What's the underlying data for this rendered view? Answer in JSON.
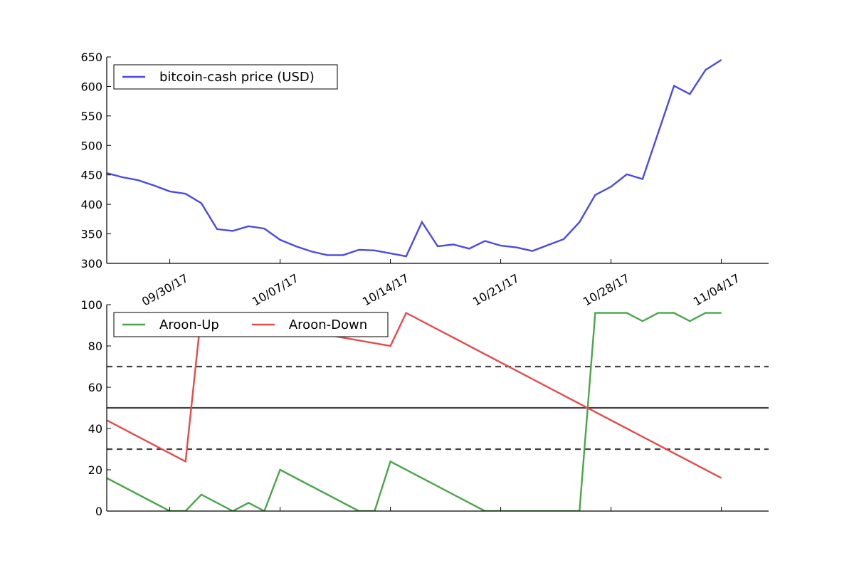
{
  "chart_data": [
    {
      "type": "line",
      "title": "",
      "xlabel": "",
      "ylabel": "",
      "ylim": [
        300,
        650
      ],
      "xlim": [
        "2017-09-26",
        "2017-11-07"
      ],
      "yticks": [
        300,
        350,
        400,
        450,
        500,
        550,
        600,
        650
      ],
      "xticks": [
        {
          "date": "2017-09-30",
          "label": "09/30/17"
        },
        {
          "date": "2017-10-07",
          "label": "10/07/17"
        },
        {
          "date": "2017-10-14",
          "label": "10/14/17"
        },
        {
          "date": "2017-10-21",
          "label": "10/21/17"
        },
        {
          "date": "2017-10-28",
          "label": "10/28/17"
        },
        {
          "date": "2017-11-04",
          "label": "11/04/17"
        }
      ],
      "grid": false,
      "legend_position": "top-left",
      "series": [
        {
          "name": "bitcoin-cash price (USD)",
          "color": "#4a4ae6",
          "points": [
            [
              "2017-09-26",
              453
            ],
            [
              "2017-09-27",
              446
            ],
            [
              "2017-09-28",
              441
            ],
            [
              "2017-09-29",
              432
            ],
            [
              "2017-09-30",
              422
            ],
            [
              "2017-10-01",
              418
            ],
            [
              "2017-10-02",
              402
            ],
            [
              "2017-10-03",
              358
            ],
            [
              "2017-10-04",
              355
            ],
            [
              "2017-10-05",
              363
            ],
            [
              "2017-10-06",
              359
            ],
            [
              "2017-10-07",
              340
            ],
            [
              "2017-10-08",
              329
            ],
            [
              "2017-10-09",
              320
            ],
            [
              "2017-10-10",
              314
            ],
            [
              "2017-10-11",
              314
            ],
            [
              "2017-10-12",
              323
            ],
            [
              "2017-10-13",
              322
            ],
            [
              "2017-10-14",
              317
            ],
            [
              "2017-10-15",
              312
            ],
            [
              "2017-10-16",
              370
            ],
            [
              "2017-10-17",
              329
            ],
            [
              "2017-10-18",
              332
            ],
            [
              "2017-10-19",
              325
            ],
            [
              "2017-10-20",
              338
            ],
            [
              "2017-10-21",
              330
            ],
            [
              "2017-10-22",
              327
            ],
            [
              "2017-10-23",
              321
            ],
            [
              "2017-10-24",
              331
            ],
            [
              "2017-10-25",
              341
            ],
            [
              "2017-10-26",
              370
            ],
            [
              "2017-10-27",
              416
            ],
            [
              "2017-10-28",
              430
            ],
            [
              "2017-10-29",
              451
            ],
            [
              "2017-10-30",
              443
            ],
            [
              "2017-10-31",
              522
            ],
            [
              "2017-11-01",
              601
            ],
            [
              "2017-11-02",
              587
            ],
            [
              "2017-11-03",
              628
            ],
            [
              "2017-11-04",
              645
            ]
          ]
        }
      ]
    },
    {
      "type": "line",
      "title": "",
      "xlabel": "",
      "ylabel": "",
      "ylim": [
        0,
        100
      ],
      "xlim": [
        "2017-09-26",
        "2017-11-07"
      ],
      "yticks": [
        0,
        20,
        40,
        60,
        80,
        100
      ],
      "grid": false,
      "legend_position": "top-left",
      "reference_lines": [
        {
          "y": 70,
          "style": "dashed",
          "color": "#444444"
        },
        {
          "y": 50,
          "style": "solid",
          "color": "#444444"
        },
        {
          "y": 30,
          "style": "dashed",
          "color": "#444444"
        }
      ],
      "series": [
        {
          "name": "Aroon-Up",
          "color": "#4aa64a",
          "points": [
            [
              "2017-09-26",
              16
            ],
            [
              "2017-09-30",
              0
            ],
            [
              "2017-10-01",
              0
            ],
            [
              "2017-10-02",
              8
            ],
            [
              "2017-10-04",
              0
            ],
            [
              "2017-10-05",
              4
            ],
            [
              "2017-10-06",
              0
            ],
            [
              "2017-10-07",
              20
            ],
            [
              "2017-10-12",
              0
            ],
            [
              "2017-10-13",
              0
            ],
            [
              "2017-10-14",
              24
            ],
            [
              "2017-10-20",
              0
            ],
            [
              "2017-10-26",
              0
            ],
            [
              "2017-10-27",
              96
            ],
            [
              "2017-10-28",
              96
            ],
            [
              "2017-10-29",
              96
            ],
            [
              "2017-10-30",
              92
            ],
            [
              "2017-10-31",
              96
            ],
            [
              "2017-11-01",
              96
            ],
            [
              "2017-11-02",
              92
            ],
            [
              "2017-11-03",
              96
            ],
            [
              "2017-11-04",
              96
            ]
          ]
        },
        {
          "name": "Aroon-Down",
          "color": "#e64a4a",
          "points": [
            [
              "2017-09-26",
              44
            ],
            [
              "2017-10-01",
              24
            ],
            [
              "2017-10-02",
              96
            ],
            [
              "2017-10-14",
              80
            ],
            [
              "2017-10-15",
              96
            ],
            [
              "2017-11-04",
              16
            ]
          ]
        }
      ]
    }
  ]
}
